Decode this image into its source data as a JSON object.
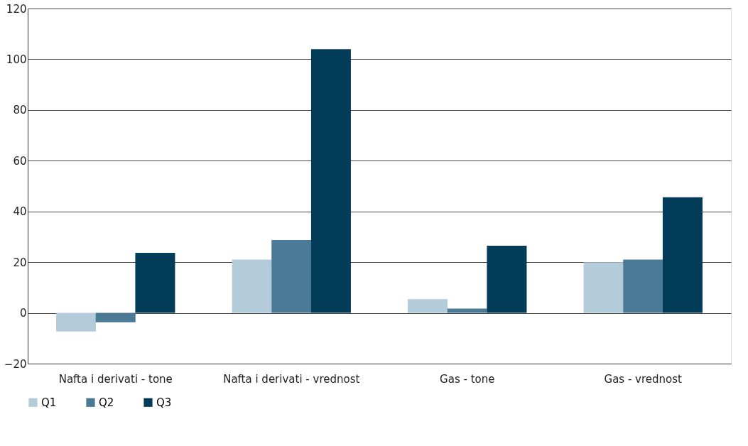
{
  "chart_data": {
    "type": "bar",
    "categories": [
      "Nafta i derivati - tone",
      "Nafta i derivati - vrednost",
      "Gas - tone",
      "Gas - vrednost"
    ],
    "series": [
      {
        "name": "Q1",
        "color": "#b4cbd9",
        "values": [
          -7.3,
          21,
          5.4,
          20
        ]
      },
      {
        "name": "Q2",
        "color": "#4a7a96",
        "values": [
          -3.7,
          28.7,
          1.7,
          21
        ]
      },
      {
        "name": "Q3",
        "color": "#023c58",
        "values": [
          23.7,
          104,
          26.5,
          45.6
        ]
      }
    ],
    "ylim": [
      -20,
      120
    ],
    "yticks": [
      -20,
      0,
      20,
      40,
      60,
      80,
      100,
      120
    ],
    "grid": "y",
    "legend": "bottom"
  }
}
